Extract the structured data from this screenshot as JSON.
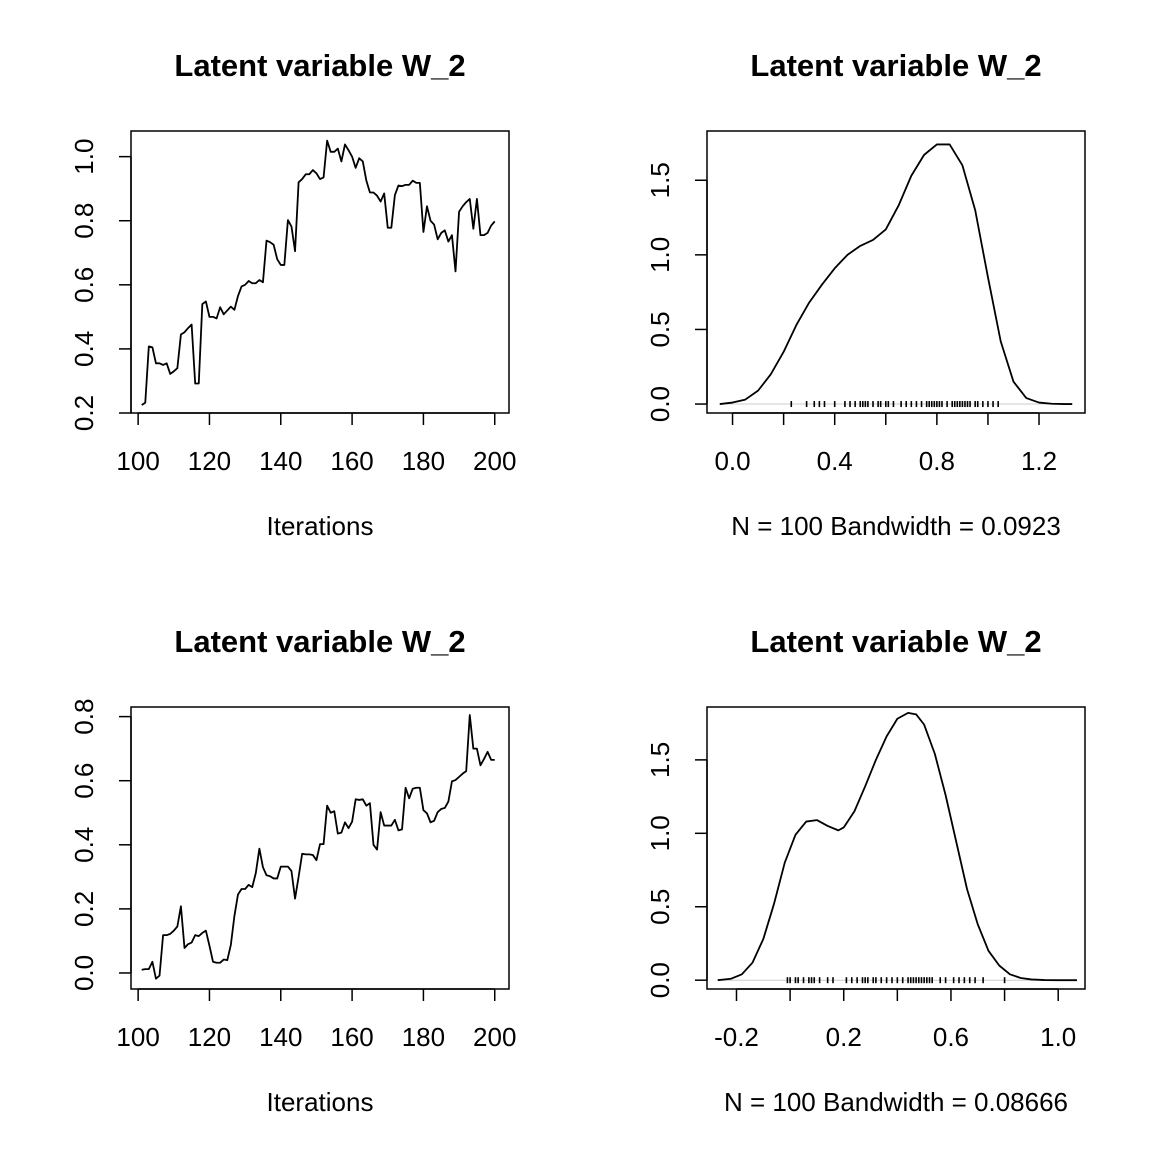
{
  "chart_data": [
    {
      "type": "line",
      "title": "Latent variable W_2",
      "xlabel": "Iterations",
      "ylabel": "",
      "xlim": [
        98,
        204
      ],
      "ylim": [
        0.2,
        1.08
      ],
      "xticks": [
        100,
        120,
        140,
        160,
        180,
        200
      ],
      "yticks": [
        0.2,
        0.4,
        0.6,
        0.8,
        1.0
      ],
      "xtick_labels": [
        "100",
        "120",
        "140",
        "160",
        "180",
        "200"
      ],
      "ytick_labels": [
        "0.2",
        "0.4",
        "0.6",
        "0.8",
        "1.0"
      ],
      "x": [
        101,
        102,
        103,
        104,
        105,
        106,
        107,
        108,
        109,
        110,
        111,
        112,
        113,
        114,
        115,
        116,
        117,
        118,
        119,
        120,
        121,
        122,
        123,
        124,
        125,
        126,
        127,
        128,
        129,
        130,
        131,
        132,
        133,
        134,
        135,
        136,
        137,
        138,
        139,
        140,
        141,
        142,
        143,
        144,
        145,
        146,
        147,
        148,
        149,
        150,
        151,
        152,
        153,
        154,
        155,
        156,
        157,
        158,
        159,
        160,
        161,
        162,
        163,
        164,
        165,
        166,
        167,
        168,
        169,
        170,
        171,
        172,
        173,
        174,
        175,
        176,
        177,
        178,
        179,
        180,
        181,
        182,
        183,
        184,
        185,
        186,
        187,
        188,
        189,
        190,
        191,
        192,
        193,
        194,
        195,
        196,
        197,
        198,
        199,
        200
      ],
      "values": [
        0.225,
        0.232,
        0.408,
        0.405,
        0.355,
        0.355,
        0.35,
        0.355,
        0.322,
        0.33,
        0.34,
        0.445,
        0.452,
        0.465,
        0.476,
        0.292,
        0.292,
        0.54,
        0.548,
        0.5,
        0.5,
        0.495,
        0.53,
        0.508,
        0.52,
        0.532,
        0.522,
        0.565,
        0.595,
        0.6,
        0.612,
        0.605,
        0.605,
        0.615,
        0.608,
        0.738,
        0.733,
        0.725,
        0.68,
        0.662,
        0.662,
        0.802,
        0.782,
        0.705,
        0.92,
        0.93,
        0.945,
        0.945,
        0.958,
        0.948,
        0.93,
        0.935,
        1.05,
        1.015,
        1.015,
        1.025,
        0.985,
        1.038,
        1.02,
        1.0,
        0.965,
        0.995,
        0.985,
        0.925,
        0.888,
        0.888,
        0.878,
        0.86,
        0.885,
        0.778,
        0.778,
        0.88,
        0.91,
        0.908,
        0.912,
        0.912,
        0.925,
        0.918,
        0.918,
        0.765,
        0.845,
        0.8,
        0.788,
        0.742,
        0.762,
        0.77,
        0.735,
        0.755,
        0.642,
        0.828,
        0.845,
        0.858,
        0.868,
        0.775,
        0.868,
        0.755,
        0.755,
        0.762,
        0.785,
        0.798
      ]
    },
    {
      "type": "line",
      "title": "Latent variable W_2",
      "xlabel": "N = 100   Bandwidth = 0.0923",
      "ylabel": "",
      "xlim": [
        -0.1,
        1.38
      ],
      "ylim": [
        -0.06,
        1.83
      ],
      "xticks": [
        0.0,
        0.2,
        0.4,
        0.6,
        0.8,
        1.0,
        1.2
      ],
      "yticks": [
        0.0,
        0.5,
        1.0,
        1.5
      ],
      "xtick_labels": [
        "0.0",
        "",
        "0.4",
        "",
        "0.8",
        "",
        "1.2"
      ],
      "ytick_labels": [
        "0.0",
        "0.5",
        "1.0",
        "1.5"
      ],
      "x": [
        -0.05,
        0.0,
        0.05,
        0.1,
        0.15,
        0.2,
        0.25,
        0.3,
        0.35,
        0.4,
        0.45,
        0.5,
        0.55,
        0.6,
        0.65,
        0.7,
        0.75,
        0.8,
        0.85,
        0.9,
        0.95,
        1.0,
        1.05,
        1.1,
        1.15,
        1.2,
        1.25,
        1.3,
        1.33
      ],
      "values": [
        0.0,
        0.01,
        0.03,
        0.09,
        0.2,
        0.35,
        0.53,
        0.68,
        0.8,
        0.91,
        1.0,
        1.06,
        1.1,
        1.17,
        1.33,
        1.53,
        1.67,
        1.74,
        1.74,
        1.6,
        1.3,
        0.85,
        0.42,
        0.15,
        0.04,
        0.01,
        0.002,
        0.0,
        0.0
      ],
      "rug": [
        0.23,
        0.29,
        0.32,
        0.34,
        0.36,
        0.4,
        0.44,
        0.46,
        0.48,
        0.5,
        0.51,
        0.52,
        0.53,
        0.55,
        0.57,
        0.58,
        0.6,
        0.61,
        0.63,
        0.66,
        0.68,
        0.7,
        0.72,
        0.74,
        0.76,
        0.77,
        0.78,
        0.79,
        0.8,
        0.81,
        0.82,
        0.84,
        0.86,
        0.87,
        0.88,
        0.89,
        0.9,
        0.91,
        0.92,
        0.93,
        0.95,
        0.96,
        0.98,
        1.0,
        1.02,
        1.04
      ]
    },
    {
      "type": "line",
      "title": "Latent variable W_2",
      "xlabel": "Iterations",
      "ylabel": "",
      "xlim": [
        98,
        204
      ],
      "ylim": [
        -0.05,
        0.83
      ],
      "xticks": [
        100,
        120,
        140,
        160,
        180,
        200
      ],
      "yticks": [
        0.0,
        0.2,
        0.4,
        0.6,
        0.8
      ],
      "xtick_labels": [
        "100",
        "120",
        "140",
        "160",
        "180",
        "200"
      ],
      "ytick_labels": [
        "0.0",
        "0.2",
        "0.4",
        "0.6",
        "0.8"
      ],
      "x": [
        101,
        102,
        103,
        104,
        105,
        106,
        107,
        108,
        109,
        110,
        111,
        112,
        113,
        114,
        115,
        116,
        117,
        118,
        119,
        120,
        121,
        122,
        123,
        124,
        125,
        126,
        127,
        128,
        129,
        130,
        131,
        132,
        133,
        134,
        135,
        136,
        137,
        138,
        139,
        140,
        141,
        142,
        143,
        144,
        145,
        146,
        147,
        148,
        149,
        150,
        151,
        152,
        153,
        154,
        155,
        156,
        157,
        158,
        159,
        160,
        161,
        162,
        163,
        164,
        165,
        166,
        167,
        168,
        169,
        170,
        171,
        172,
        173,
        174,
        175,
        176,
        177,
        178,
        179,
        180,
        181,
        182,
        183,
        184,
        185,
        186,
        187,
        188,
        189,
        190,
        191,
        192,
        193,
        194,
        195,
        196,
        197,
        198,
        199,
        200
      ],
      "values": [
        0.01,
        0.012,
        0.012,
        0.035,
        -0.018,
        -0.008,
        0.118,
        0.118,
        0.122,
        0.132,
        0.145,
        0.208,
        0.078,
        0.09,
        0.095,
        0.118,
        0.115,
        0.125,
        0.132,
        0.085,
        0.035,
        0.032,
        0.032,
        0.042,
        0.04,
        0.088,
        0.178,
        0.245,
        0.262,
        0.262,
        0.275,
        0.268,
        0.312,
        0.388,
        0.33,
        0.305,
        0.302,
        0.295,
        0.295,
        0.332,
        0.332,
        0.332,
        0.318,
        0.232,
        0.3,
        0.372,
        0.37,
        0.37,
        0.368,
        0.352,
        0.402,
        0.402,
        0.522,
        0.5,
        0.505,
        0.435,
        0.438,
        0.47,
        0.452,
        0.472,
        0.542,
        0.54,
        0.542,
        0.522,
        0.53,
        0.4,
        0.385,
        0.502,
        0.46,
        0.46,
        0.46,
        0.478,
        0.445,
        0.448,
        0.578,
        0.545,
        0.575,
        0.578,
        0.578,
        0.508,
        0.498,
        0.47,
        0.475,
        0.502,
        0.512,
        0.515,
        0.535,
        0.598,
        0.602,
        0.612,
        0.622,
        0.63,
        0.805,
        0.7,
        0.7,
        0.648,
        0.668,
        0.69,
        0.665,
        0.665
      ],
      "rug": []
    },
    {
      "type": "line",
      "title": "Latent variable W_2",
      "xlabel": "N = 100   Bandwidth = 0.08666",
      "ylabel": "",
      "xlim": [
        -0.31,
        1.1
      ],
      "ylim": [
        -0.06,
        1.86
      ],
      "xticks": [
        -0.2,
        0.0,
        0.2,
        0.4,
        0.6,
        0.8,
        1.0
      ],
      "yticks": [
        0.0,
        0.5,
        1.0,
        1.5
      ],
      "xtick_labels": [
        "-0.2",
        "",
        "0.2",
        "",
        "0.6",
        "",
        "1.0"
      ],
      "ytick_labels": [
        "0.0",
        "0.5",
        "1.0",
        "1.5"
      ],
      "x": [
        -0.27,
        -0.22,
        -0.18,
        -0.14,
        -0.1,
        -0.06,
        -0.02,
        0.02,
        0.06,
        0.1,
        0.14,
        0.18,
        0.2,
        0.24,
        0.28,
        0.32,
        0.36,
        0.4,
        0.44,
        0.47,
        0.5,
        0.54,
        0.58,
        0.62,
        0.66,
        0.7,
        0.74,
        0.78,
        0.82,
        0.86,
        0.9,
        0.95,
        1.0,
        1.07
      ],
      "values": [
        0.0,
        0.01,
        0.04,
        0.12,
        0.28,
        0.52,
        0.8,
        0.99,
        1.08,
        1.09,
        1.05,
        1.02,
        1.04,
        1.15,
        1.32,
        1.5,
        1.66,
        1.78,
        1.82,
        1.81,
        1.74,
        1.54,
        1.26,
        0.94,
        0.62,
        0.38,
        0.2,
        0.1,
        0.04,
        0.015,
        0.005,
        0.001,
        0.0,
        0.0
      ],
      "rug": [
        -0.01,
        0.0,
        0.02,
        0.03,
        0.05,
        0.07,
        0.08,
        0.09,
        0.11,
        0.14,
        0.16,
        0.21,
        0.23,
        0.25,
        0.27,
        0.28,
        0.29,
        0.31,
        0.32,
        0.34,
        0.36,
        0.38,
        0.4,
        0.42,
        0.44,
        0.45,
        0.46,
        0.47,
        0.48,
        0.49,
        0.5,
        0.51,
        0.52,
        0.53,
        0.56,
        0.58,
        0.61,
        0.63,
        0.65,
        0.67,
        0.69,
        0.72,
        0.8
      ]
    }
  ]
}
